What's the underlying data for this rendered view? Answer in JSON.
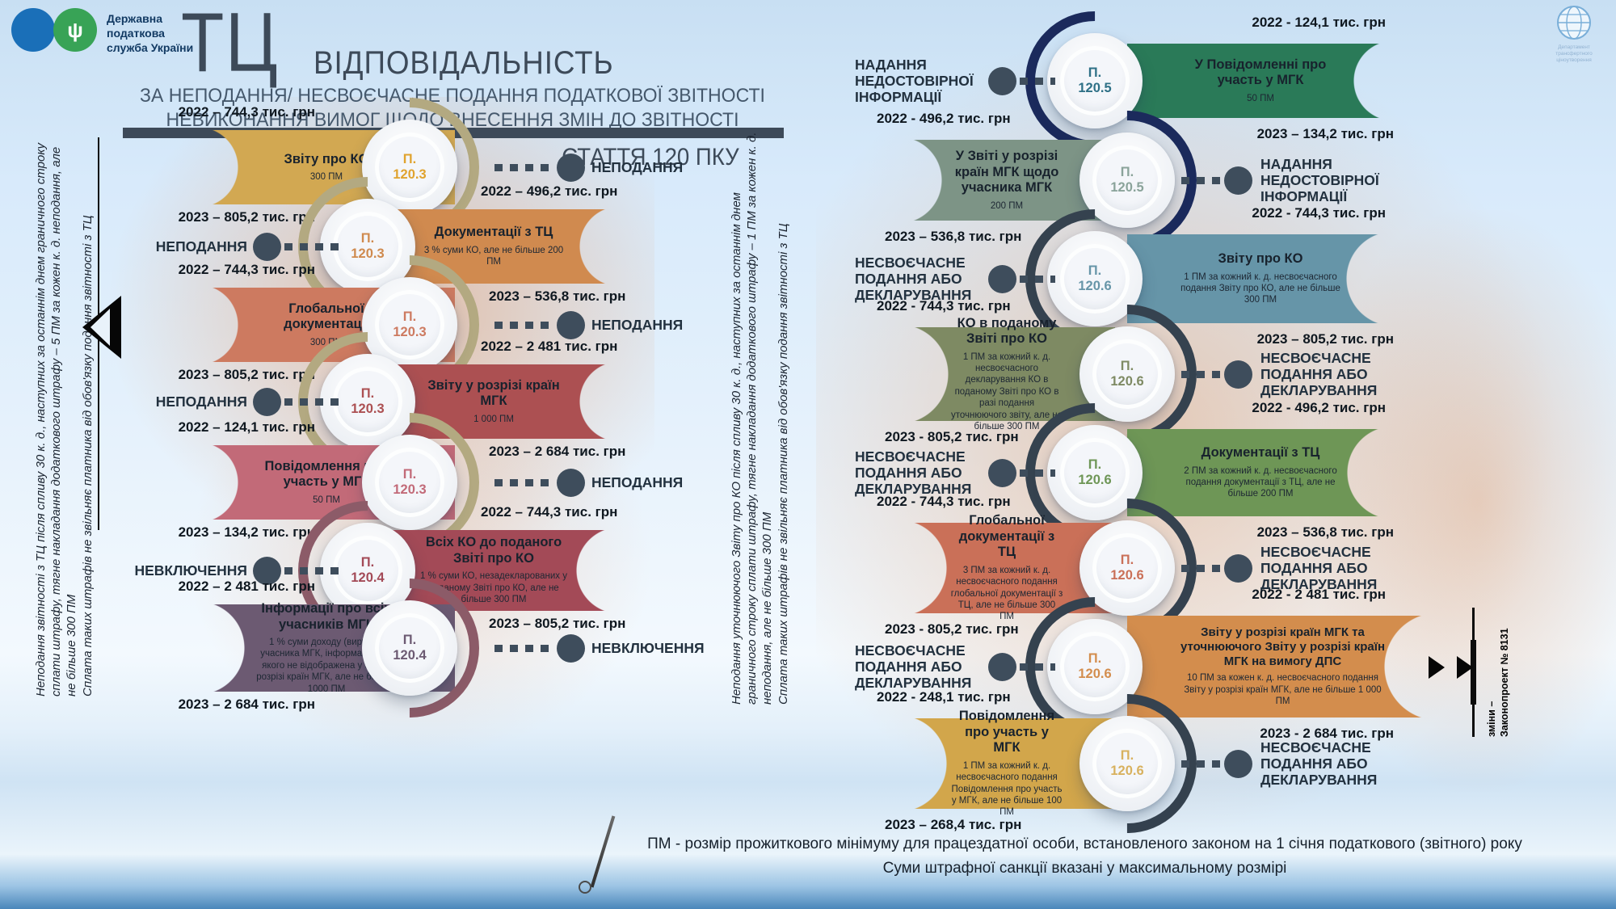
{
  "header": {
    "org_name": "Державна\nподаткова\nслужба України",
    "tc_monogram": "ТЦ",
    "title": "ВІДПОВІДАЛЬНІСТЬ",
    "subtitle_line1": "ЗА НЕПОДАННЯ/ НЕСВОЄЧАСНЕ ПОДАННЯ ПОДАТКОВОЇ ЗВІТНОСТІ",
    "subtitle_line2": "НЕВИКОНАННЯ ВИМОГ ЩОДО ВНЕСЕННЯ ЗМІН ДО ЗВІТНОСТІ",
    "article_heading": "СТАТТЯ 120 ПКУ",
    "trident_glyph": "ψ",
    "corner_logo_caption": "Департамент трансфертного ціноутворення"
  },
  "side_notes": {
    "left_p1": "Неподання звітності з ТЦ після спливу 30 к. д., наступних за останнім днем граничного строку сплати штрафу, тягне накладання додаткового штрафу – 5 ПМ за кожен к. д. неподання, але не більше 300 ПМ",
    "left_p2": "Сплата таких штрафів не звільняє платника від обов'язку подання звітності з ТЦ",
    "middle_p1": "Неподання уточнюючого Звіту про КО після спливу 30 к. д., наступних за останнім днем граничного строку сплати штрафу, тягне накладання додаткового штрафу – 1 ПМ за кожен к. д. неподання, але не більше 300 ПМ",
    "middle_p2": "Сплата таких штрафів не звільняє платника від обов'язку подання звітності з ТЦ"
  },
  "columns": {
    "left": {
      "items": [
        {
          "title": "Звіту про КО",
          "detail": "300 ПМ",
          "badge": "П. 120.3",
          "year_2022": "2022 – 744,3 тис. грн",
          "year_2023": "2023 – 805,2 тис. грн",
          "label": "НЕПОДАННЯ",
          "ribbon_color": "#d2a852",
          "badge_text_color": "#e0a32e",
          "arc_color": "#b3a981"
        },
        {
          "title": "Документації з ТЦ",
          "detail": "3 % суми КО, але не більше 200 ПМ",
          "badge": "П. 120.3",
          "year_2022": "2022 – 496,2 тис. грн",
          "year_2023": "2023 – 536,8 тис. грн",
          "label": "НЕПОДАННЯ",
          "ribbon_color": "#d08a4f",
          "badge_text_color": "#cf8a4e",
          "arc_color": "#b3a981"
        },
        {
          "title": "Глобальної документації",
          "detail": "300 ПМ",
          "badge": "П. 120.3",
          "year_2022": "2022 – 744,3 тис. грн",
          "year_2023": "2023 – 805,2 тис. грн",
          "label": "НЕПОДАННЯ",
          "ribbon_color": "#cd7a60",
          "badge_text_color": "#cd7a60",
          "arc_color": "#b3a981"
        },
        {
          "title": "Звіту у розрізі країн МГК",
          "detail": "1 000 ПМ",
          "badge": "П. 120.3",
          "year_2022": "2022 – 2 481 тис. грн",
          "year_2023": "2023 – 2 684 тис. грн",
          "label": "НЕПОДАННЯ",
          "ribbon_color": "#ac5052",
          "badge_text_color": "#ac5052",
          "arc_color": "#b3a981"
        },
        {
          "title": "Повідомлення про участь у МГК",
          "detail": "50 ПМ",
          "badge": "П. 120.3",
          "year_2022": "2022 – 124,1 тис. грн",
          "year_2023": "2023 – 134,2 тис. грн",
          "label": "НЕПОДАННЯ",
          "ribbon_color": "#c26a78",
          "badge_text_color": "#c26a78",
          "arc_color": "#b3a981"
        },
        {
          "title": "Всіх КО до поданого Звіті про КО",
          "detail": "1 % суми КО, незадекларованих у поданому Звіті про КО, але не більше 300 ПМ",
          "badge": "П. 120.4",
          "year_2022": "2022 – 744,3 тис. грн",
          "year_2023": "2023 – 805,2 тис. грн",
          "label": "НЕВКЛЮЧЕННЯ",
          "ribbon_color": "#a34a57",
          "badge_text_color": "#a34a57",
          "arc_color": "#8c5b68"
        },
        {
          "title": "Інформації про всіх учасників МГК",
          "detail": "1 % суми доходу (виручки) учасника МГК, інформація про якого не відображена у Звіті у розрізі країн МГК, але не більше 1000 ПМ",
          "badge": "П. 120.4",
          "year_2022": "2022 – 2 481 тис. грн",
          "year_2023": "2023 – 2 684 тис. грн",
          "label": "НЕВКЛЮЧЕННЯ",
          "ribbon_color": "#6c5a72",
          "badge_text_color": "#6c5a72",
          "arc_color": "#8c5b68"
        }
      ]
    },
    "right": {
      "items": [
        {
          "title": "У Повідомленні про участь у МГК",
          "detail": "50 ПМ",
          "badge": "П. 120.5",
          "year_2022": "2022 - 124,1 тис. грн",
          "year_2023": "2023 – 134,2 тис. грн",
          "label": "НАДАННЯ НЕДОСТОВІРНОЇ ІНФОРМАЦІЇ",
          "ribbon_color": "#2a7a58",
          "badge_text_color": "#2e7086",
          "arc_color": "#1b2a5c"
        },
        {
          "title": "У Звіті у розрізі країн МГК щодо учасника МГК",
          "detail": "200 ПМ",
          "badge": "П. 120.5",
          "year_2022": "2022 - 496,2 тис. грн",
          "year_2023": "2023 – 536,8 тис. грн",
          "label": "НАДАННЯ НЕДОСТОВІРНОЇ ІНФОРМАЦІЇ",
          "ribbon_color": "#7d9486",
          "badge_text_color": "#8aa39a",
          "arc_color": "#1b2a5c"
        },
        {
          "title": "Звіту про КО",
          "detail": "1 ПМ за кожний к. д. несвоєчасного подання Звіту про КО, але не більше 300 ПМ",
          "badge": "П. 120.6",
          "year_2022": "2022 - 744,3 тис. грн",
          "year_2023": "2023 – 805,2 тис. грн",
          "label": "НЕСВОЄЧАСНЕ ПОДАННЯ АБО ДЕКЛАРУВАННЯ",
          "ribbon_color": "#6695a8",
          "badge_text_color": "#6695a8",
          "arc_color": "#35424f"
        },
        {
          "title": "КО в поданому Звіті про КО",
          "detail": "1 ПМ за кожний к. д. несвоєчасного декларування КО в поданому Звіті про КО в разі подання уточнюючого звіту, але не більше 300 ПМ",
          "badge": "П. 120.6",
          "year_2022": "2022 - 744,3 тис. грн",
          "year_2023": "2023 - 805,2 тис. грн",
          "label": "НЕСВОЄЧАСНЕ ПОДАННЯ АБО ДЕКЛАРУВАННЯ",
          "ribbon_color": "#7e8a63",
          "badge_text_color": "#7e8a63",
          "arc_color": "#35424f"
        },
        {
          "title": "Документації з ТЦ",
          "detail": "2 ПМ за кожний к. д. несвоєчасного подання документації з ТЦ, але не більше 200 ПМ",
          "badge": "П. 120.6",
          "year_2022": "2022 - 496,2 тис. грн",
          "year_2023": "2023 – 536,8 тис. грн",
          "label": "НЕСВОЄЧАСНЕ ПОДАННЯ АБО ДЕКЛАРУВАННЯ",
          "ribbon_color": "#6e9656",
          "badge_text_color": "#6e9656",
          "arc_color": "#35424f"
        },
        {
          "title": "Глобальної документації з ТЦ",
          "detail": "3 ПМ за кожний к. д. несвоєчасного подання глобальної документації з ТЦ, але не більше 300 ПМ",
          "badge": "П. 120.6",
          "year_2022": "2022 - 744,3 тис. грн",
          "year_2023": "2023 - 805,2 тис. грн",
          "label": "НЕСВОЄЧАСНЕ ПОДАННЯ АБО ДЕКЛАРУВАННЯ",
          "ribbon_color": "#ca7058",
          "badge_text_color": "#ca7058",
          "arc_color": "#35424f"
        },
        {
          "title": "Звіту у розрізі країн МГК та уточнюючого Звіту у розрізі країн МГК на вимогу ДПС",
          "detail": "10 ПМ за кожен к. д. несвоєчасного подання Звіту у розрізі країн МГК, але не більше 1 000 ПМ",
          "badge": "П. 120.6",
          "year_2022": "2022 - 2 481 тис. грн",
          "year_2023": "2023 - 2 684 тис. грн",
          "label": "НЕСВОЄЧАСНЕ ПОДАННЯ АБО ДЕКЛАРУВАННЯ",
          "ribbon_color": "#d38d4d",
          "badge_text_color": "#d38d4d",
          "arc_color": "#35424f"
        },
        {
          "title": "Повідомлення про участь у МГК",
          "detail": "1 ПМ за кожний к. д. несвоєчасного подання Повідомлення про участь у МГК, але не більше 100 ПМ",
          "badge": "П. 120.6",
          "year_2022": "2022 - 248,1 тис. грн",
          "year_2023": "2023 – 268,4 тис. грн",
          "label": "НЕСВОЄЧАСНЕ ПОДАННЯ АБО ДЕКЛАРУВАННЯ",
          "ribbon_color": "#d2a64b",
          "badge_text_color": "#d8b15e",
          "arc_color": "#35424f"
        }
      ]
    }
  },
  "law_note": {
    "text": "зміни –\nЗаконопроект № 8131",
    "color": "#d9822b"
  },
  "footer": {
    "line1": "ПМ - розмір прожиткового мінімуму для працездатної особи, встановленого законом на 1 січня податкового (звітного) року",
    "line2": "Суми штрафної санкції вказані у максимальному розмірі"
  }
}
